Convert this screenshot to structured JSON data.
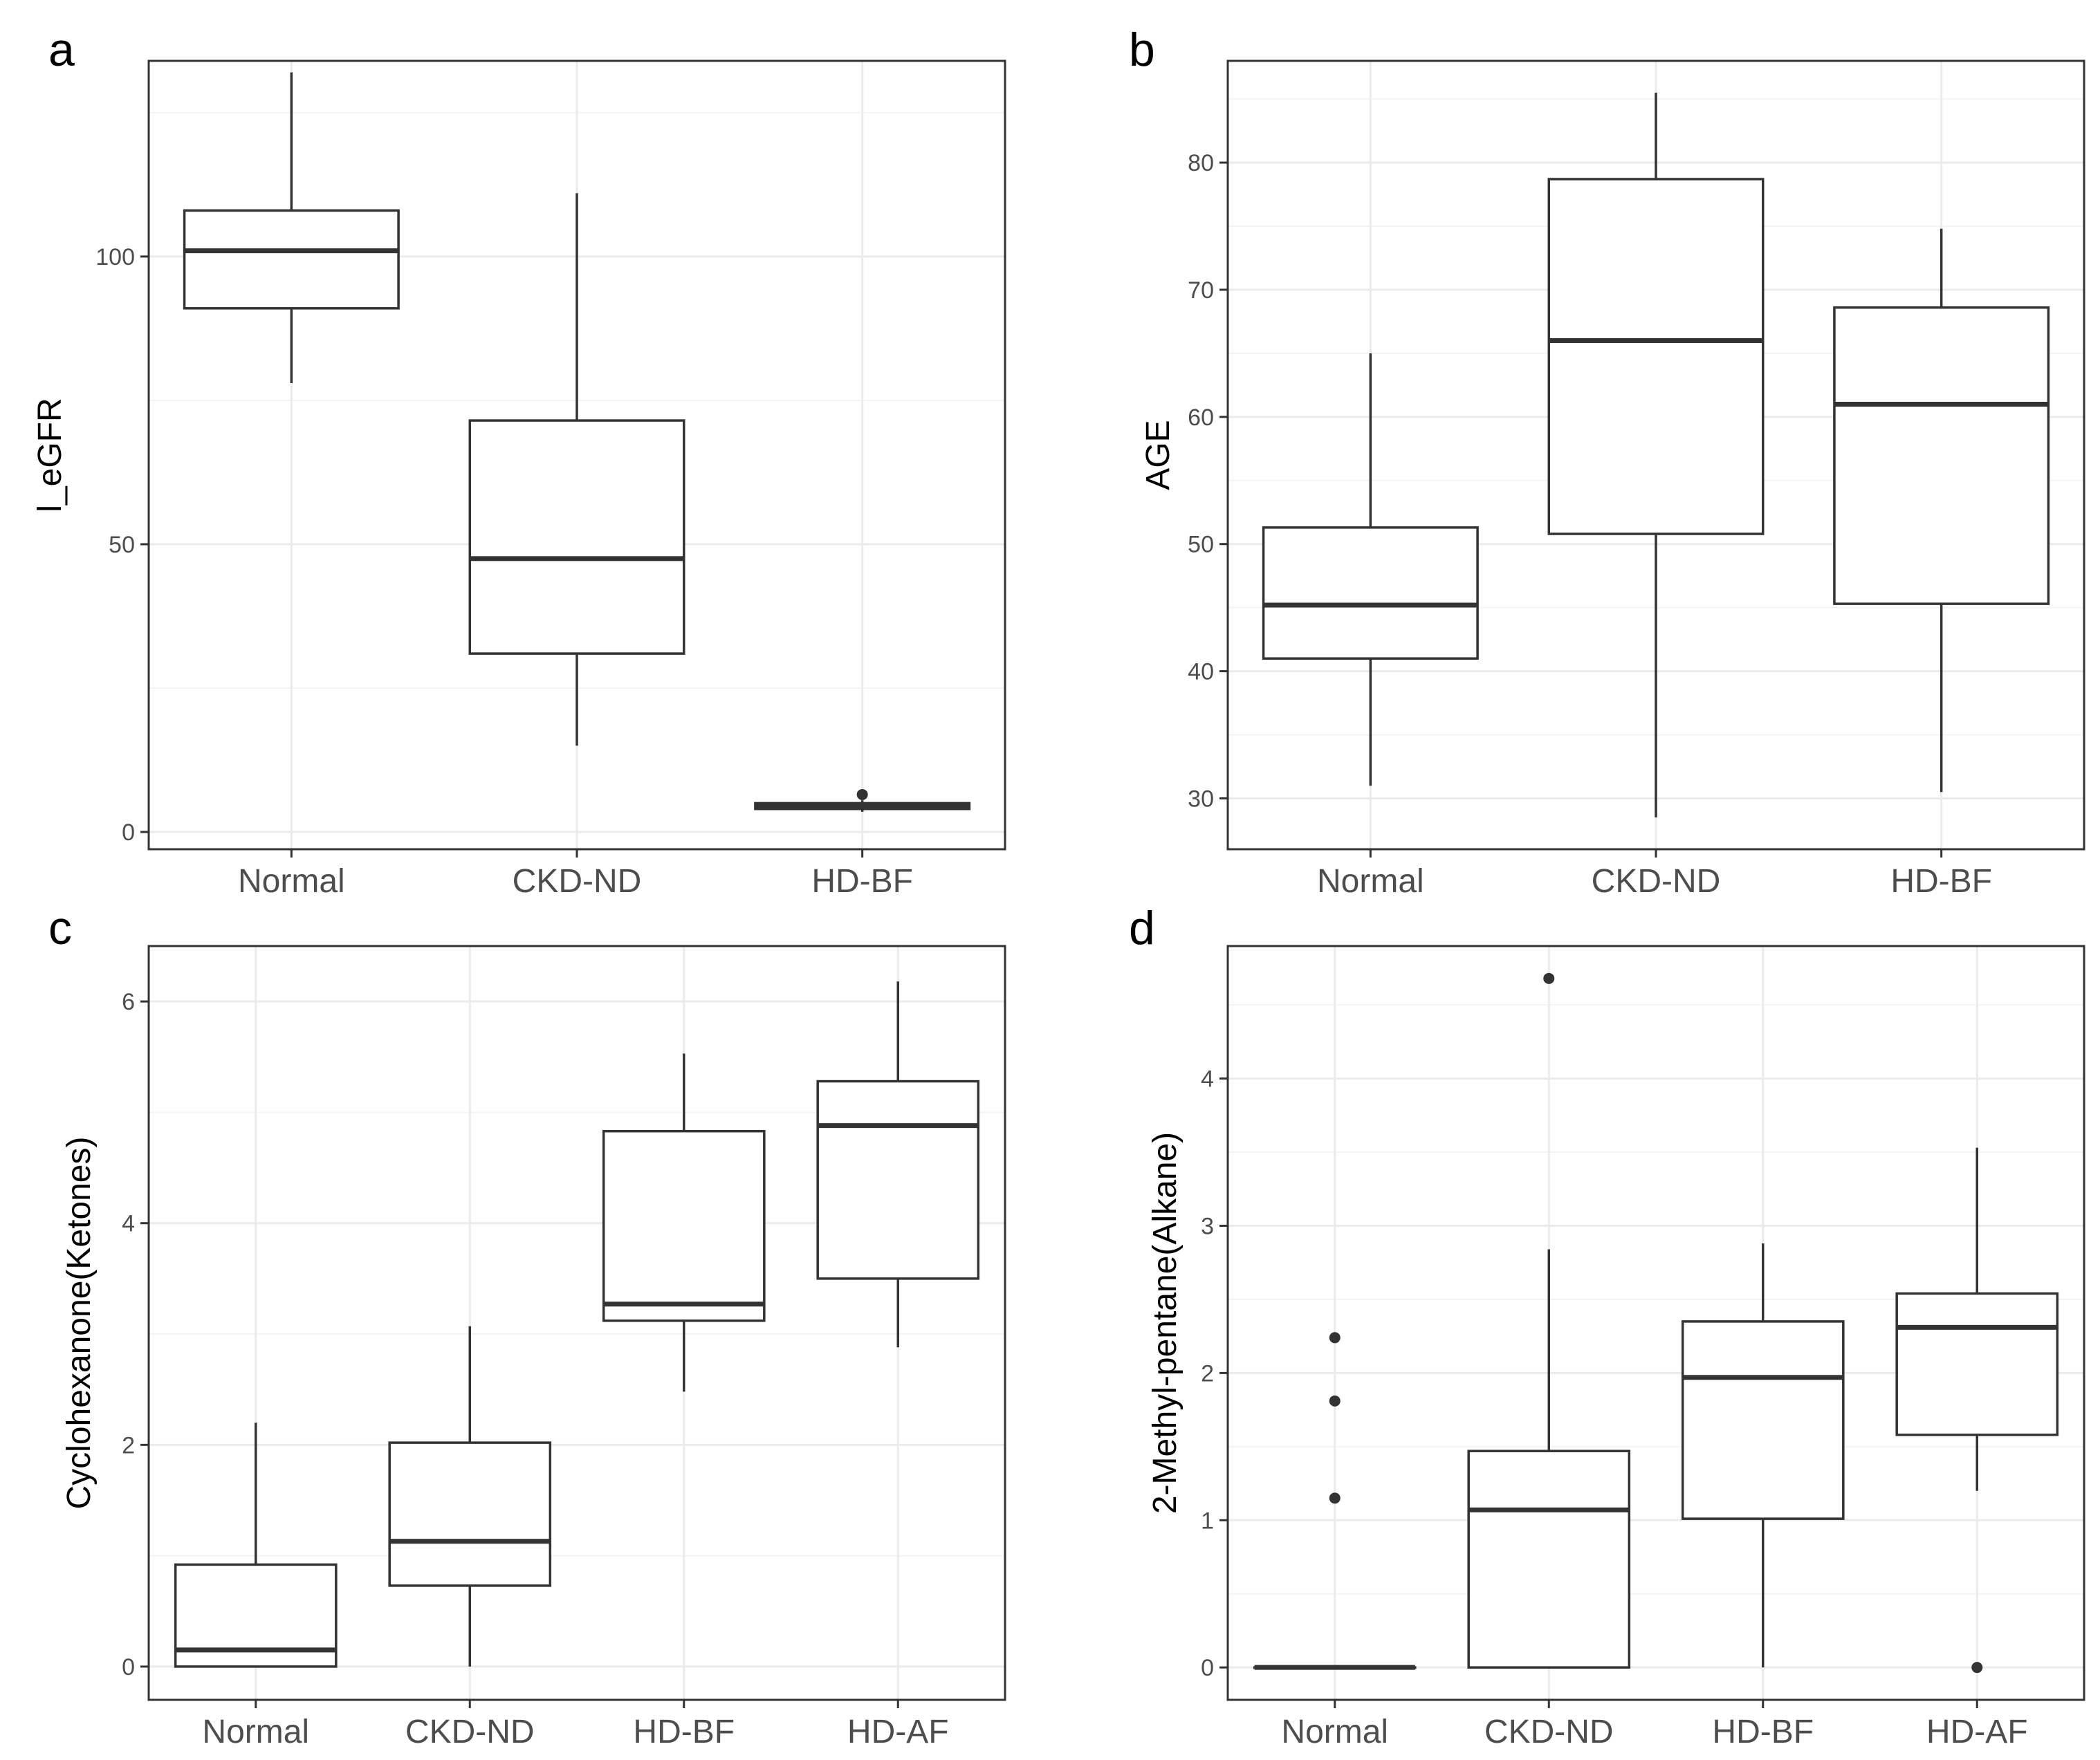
{
  "chart_data": [
    {
      "type": "boxplot",
      "panel_label": "a",
      "ylabel": "l_eGFR",
      "xlabel": "",
      "ylim": [
        -3,
        134
      ],
      "y_ticks": [
        0,
        50,
        100
      ],
      "y_minor_ticks": [
        25,
        75,
        125
      ],
      "grid": true,
      "categories": [
        "Normal",
        "CKD-ND",
        "HD-BF"
      ],
      "boxes": [
        {
          "category": "Normal",
          "min": 78,
          "q1": 91,
          "median": 101,
          "q3": 108,
          "max": 132,
          "outliers": []
        },
        {
          "category": "CKD-ND",
          "min": 15,
          "q1": 31,
          "median": 47.5,
          "q3": 71.5,
          "max": 111,
          "outliers": []
        },
        {
          "category": "HD-BF",
          "min": 3.5,
          "q1": 4.0,
          "median": 4.5,
          "q3": 5.0,
          "max": 5.5,
          "outliers": [
            6.5
          ]
        }
      ]
    },
    {
      "type": "boxplot",
      "panel_label": "b",
      "ylabel": "AGE",
      "xlabel": "",
      "ylim": [
        26,
        88
      ],
      "y_ticks": [
        30,
        40,
        50,
        60,
        70,
        80
      ],
      "y_minor_ticks": [
        35,
        45,
        55,
        65,
        75,
        85
      ],
      "grid": true,
      "categories": [
        "Normal",
        "CKD-ND",
        "HD-BF"
      ],
      "boxes": [
        {
          "category": "Normal",
          "min": 31,
          "q1": 41,
          "median": 45.2,
          "q3": 51.3,
          "max": 65,
          "outliers": []
        },
        {
          "category": "CKD-ND",
          "min": 28.5,
          "q1": 50.8,
          "median": 66,
          "q3": 78.7,
          "max": 85.5,
          "outliers": []
        },
        {
          "category": "HD-BF",
          "min": 30.5,
          "q1": 45.3,
          "median": 61,
          "q3": 68.6,
          "max": 74.8,
          "outliers": []
        }
      ]
    },
    {
      "type": "boxplot",
      "panel_label": "c",
      "ylabel": "Cyclohexanone(Ketones)",
      "xlabel": "",
      "ylim": [
        -0.3,
        6.5
      ],
      "y_ticks": [
        0,
        2,
        4,
        6
      ],
      "y_minor_ticks": [
        1,
        3,
        5
      ],
      "grid": true,
      "categories": [
        "Normal",
        "CKD-ND",
        "HD-BF",
        "HD-AF"
      ],
      "boxes": [
        {
          "category": "Normal",
          "min": 0,
          "q1": 0,
          "median": 0.15,
          "q3": 0.92,
          "max": 2.2,
          "outliers": []
        },
        {
          "category": "CKD-ND",
          "min": 0,
          "q1": 0.73,
          "median": 1.13,
          "q3": 2.02,
          "max": 3.07,
          "outliers": []
        },
        {
          "category": "HD-BF",
          "min": 2.48,
          "q1": 3.12,
          "median": 3.27,
          "q3": 4.83,
          "max": 5.53,
          "outliers": []
        },
        {
          "category": "HD-AF",
          "min": 2.88,
          "q1": 3.5,
          "median": 4.88,
          "q3": 5.28,
          "max": 6.18,
          "outliers": []
        }
      ]
    },
    {
      "type": "boxplot",
      "panel_label": "d",
      "ylabel": "2-Methyl-pentane(Alkane)",
      "xlabel": "",
      "ylim": [
        -0.22,
        4.9
      ],
      "y_ticks": [
        0,
        1,
        2,
        3,
        4
      ],
      "y_minor_ticks": [
        0.5,
        1.5,
        2.5,
        3.5,
        4.5
      ],
      "grid": true,
      "categories": [
        "Normal",
        "CKD-ND",
        "HD-BF",
        "HD-AF"
      ],
      "boxes": [
        {
          "category": "Normal",
          "min": 0,
          "q1": 0,
          "median": 0,
          "q3": 0,
          "max": 0,
          "outliers": [
            1.15,
            1.81,
            2.24
          ]
        },
        {
          "category": "CKD-ND",
          "min": 0,
          "q1": 0,
          "median": 1.07,
          "q3": 1.47,
          "max": 2.84,
          "outliers": [
            4.68
          ]
        },
        {
          "category": "HD-BF",
          "min": 0,
          "q1": 1.01,
          "median": 1.97,
          "q3": 2.35,
          "max": 2.88,
          "outliers": []
        },
        {
          "category": "HD-AF",
          "min": 1.2,
          "q1": 1.58,
          "median": 2.31,
          "q3": 2.54,
          "max": 3.53,
          "outliers": [
            0
          ]
        }
      ]
    }
  ]
}
